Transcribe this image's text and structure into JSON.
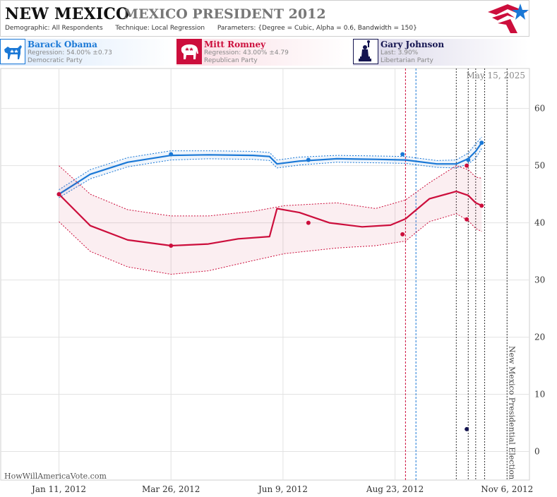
{
  "header": {
    "state": "NEW MEXICO",
    "race": "MEXICO PRESIDENT 2012",
    "demographic_label": "Demographic:",
    "demographic_value": "All Respondents",
    "technique_label": "Technique:",
    "technique_value": "Local Regression",
    "parameters_label": "Parameters:",
    "parameters_value": "{Degree = Cubic, Alpha = 0.6, Bandwidth = 150}"
  },
  "candidates": [
    {
      "name": "Barack Obama",
      "line2": "Regression: 54.00% ±0.73",
      "line3": "Democratic Party",
      "color": "#1a78d6"
    },
    {
      "name": "Mitt Romney",
      "line2": "Regression: 43.00% ±4.79",
      "line3": "Republican Party",
      "color": "#cc0e3c"
    },
    {
      "name": "Gary Johnson",
      "line2": "Last: 3.90%",
      "line3": "Libertarian Party",
      "color": "#141450"
    }
  ],
  "footer": {
    "watermark": "HowWillAmericaVote.com"
  },
  "chart_data": {
    "type": "line",
    "date_label": "May 15, 2025",
    "x_ticks": [
      "Jan 11, 2012",
      "Mar 26, 2012",
      "Jun 9, 2012",
      "Aug 23, 2012",
      "Nov 6, 2012"
    ],
    "y_ticks": [
      0,
      10,
      20,
      30,
      40,
      50,
      60
    ],
    "ylim": [
      -5,
      67
    ],
    "xlim": [
      "2011-12-03",
      "2012-11-21"
    ],
    "grid": true,
    "annotation": "New Mexico Presidential Election",
    "event_lines": [
      {
        "date": "2012-08-30",
        "color": "#cc0e3c",
        "style": "dashed"
      },
      {
        "date": "2012-09-06",
        "color": "#1a78d6",
        "style": "dashed"
      },
      {
        "date": "2012-10-03",
        "color": "#333333",
        "style": "dotted"
      },
      {
        "date": "2012-10-11",
        "color": "#333333",
        "style": "dotted"
      },
      {
        "date": "2012-10-16",
        "color": "#333333",
        "style": "dotted"
      },
      {
        "date": "2012-10-22",
        "color": "#333333",
        "style": "dotted"
      },
      {
        "date": "2012-11-06",
        "color": "#333333",
        "style": "dotted"
      }
    ],
    "series": [
      {
        "name": "Barack Obama",
        "color": "#1a78d6",
        "trend": [
          [
            "2012-01-11",
            45
          ],
          [
            "2012-02-01",
            48.5
          ],
          [
            "2012-02-26",
            50.6
          ],
          [
            "2012-03-26",
            51.8
          ],
          [
            "2012-04-20",
            51.9
          ],
          [
            "2012-05-20",
            51.8
          ],
          [
            "2012-05-31",
            51.6
          ],
          [
            "2012-06-05",
            50.3
          ],
          [
            "2012-06-20",
            50.8
          ],
          [
            "2012-07-15",
            51.2
          ],
          [
            "2012-08-10",
            51.1
          ],
          [
            "2012-08-30",
            51.0
          ],
          [
            "2012-09-20",
            50.3
          ],
          [
            "2012-10-03",
            50.3
          ],
          [
            "2012-10-11",
            51.2
          ],
          [
            "2012-10-16",
            52.5
          ],
          [
            "2012-10-20",
            54.0
          ]
        ],
        "upper": [
          [
            "2012-01-11",
            45.8
          ],
          [
            "2012-02-01",
            49.3
          ],
          [
            "2012-02-26",
            51.4
          ],
          [
            "2012-03-26",
            52.6
          ],
          [
            "2012-04-20",
            52.6
          ],
          [
            "2012-05-20",
            52.5
          ],
          [
            "2012-05-31",
            52.3
          ],
          [
            "2012-06-05",
            51.0
          ],
          [
            "2012-06-20",
            51.5
          ],
          [
            "2012-07-15",
            51.8
          ],
          [
            "2012-08-10",
            51.7
          ],
          [
            "2012-08-30",
            51.6
          ],
          [
            "2012-09-20",
            50.9
          ],
          [
            "2012-10-03",
            51.0
          ],
          [
            "2012-10-11",
            52.2
          ],
          [
            "2012-10-16",
            53.8
          ],
          [
            "2012-10-20",
            55.0
          ]
        ],
        "lower": [
          [
            "2012-01-11",
            44.4
          ],
          [
            "2012-02-01",
            47.7
          ],
          [
            "2012-02-26",
            49.8
          ],
          [
            "2012-03-26",
            51.0
          ],
          [
            "2012-04-20",
            51.2
          ],
          [
            "2012-05-20",
            51.1
          ],
          [
            "2012-05-31",
            50.9
          ],
          [
            "2012-06-05",
            49.6
          ],
          [
            "2012-06-20",
            50.1
          ],
          [
            "2012-07-15",
            50.6
          ],
          [
            "2012-08-10",
            50.5
          ],
          [
            "2012-08-30",
            50.4
          ],
          [
            "2012-09-20",
            49.7
          ],
          [
            "2012-10-03",
            49.6
          ],
          [
            "2012-10-11",
            50.3
          ],
          [
            "2012-10-16",
            51.3
          ],
          [
            "2012-10-20",
            53.0
          ]
        ],
        "points": [
          [
            "2012-01-11",
            45
          ],
          [
            "2012-03-26",
            52
          ],
          [
            "2012-06-26",
            51
          ],
          [
            "2012-08-28",
            52
          ],
          [
            "2012-10-11",
            51
          ],
          [
            "2012-10-20",
            54
          ]
        ]
      },
      {
        "name": "Mitt Romney",
        "color": "#cc0e3c",
        "trend": [
          [
            "2012-01-11",
            45
          ],
          [
            "2012-02-01",
            39.5
          ],
          [
            "2012-02-26",
            37
          ],
          [
            "2012-03-26",
            36
          ],
          [
            "2012-04-20",
            36.3
          ],
          [
            "2012-05-10",
            37.2
          ],
          [
            "2012-05-31",
            37.6
          ],
          [
            "2012-06-05",
            42.5
          ],
          [
            "2012-06-20",
            41.8
          ],
          [
            "2012-07-10",
            40
          ],
          [
            "2012-08-01",
            39.3
          ],
          [
            "2012-08-20",
            39.6
          ],
          [
            "2012-08-30",
            40.7
          ],
          [
            "2012-09-15",
            44.2
          ],
          [
            "2012-10-03",
            45.5
          ],
          [
            "2012-10-11",
            44.8
          ],
          [
            "2012-10-16",
            43.5
          ],
          [
            "2012-10-20",
            43.0
          ]
        ],
        "upper": [
          [
            "2012-01-11",
            50
          ],
          [
            "2012-02-01",
            45
          ],
          [
            "2012-02-26",
            42.3
          ],
          [
            "2012-03-26",
            41.2
          ],
          [
            "2012-04-20",
            41.2
          ],
          [
            "2012-05-20",
            42.0
          ],
          [
            "2012-06-10",
            43.0
          ],
          [
            "2012-07-15",
            43.5
          ],
          [
            "2012-08-10",
            42.5
          ],
          [
            "2012-08-30",
            44.0
          ],
          [
            "2012-09-15",
            47.0
          ],
          [
            "2012-10-03",
            50.0
          ],
          [
            "2012-10-11",
            49.3
          ],
          [
            "2012-10-16",
            48.0
          ],
          [
            "2012-10-20",
            47.8
          ]
        ],
        "lower": [
          [
            "2012-01-11",
            40.2
          ],
          [
            "2012-02-01",
            35
          ],
          [
            "2012-02-26",
            32.3
          ],
          [
            "2012-03-26",
            31.0
          ],
          [
            "2012-04-20",
            31.6
          ],
          [
            "2012-05-20",
            33.4
          ],
          [
            "2012-06-10",
            34.6
          ],
          [
            "2012-07-15",
            35.6
          ],
          [
            "2012-08-10",
            36.0
          ],
          [
            "2012-08-30",
            36.8
          ],
          [
            "2012-09-15",
            40.2
          ],
          [
            "2012-10-03",
            41.6
          ],
          [
            "2012-10-11",
            40.4
          ],
          [
            "2012-10-16",
            39.0
          ],
          [
            "2012-10-20",
            38.5
          ]
        ],
        "points": [
          [
            "2012-01-11",
            45
          ],
          [
            "2012-03-26",
            36
          ],
          [
            "2012-06-26",
            40
          ],
          [
            "2012-08-28",
            38
          ],
          [
            "2012-10-10",
            40.6
          ],
          [
            "2012-10-10",
            50
          ],
          [
            "2012-10-20",
            43
          ]
        ]
      },
      {
        "name": "Gary Johnson",
        "color": "#141450",
        "points": [
          [
            "2012-10-10",
            3.9
          ]
        ]
      }
    ]
  }
}
